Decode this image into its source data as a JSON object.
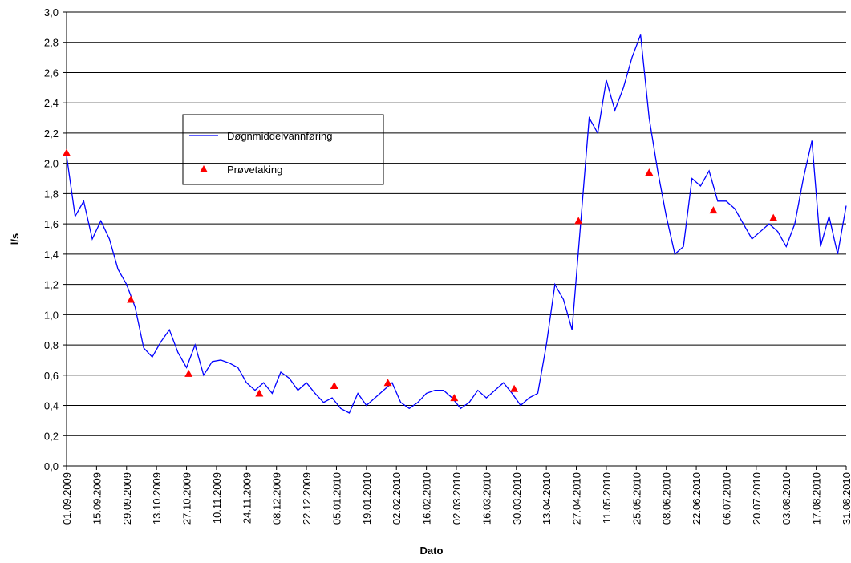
{
  "chart_data": {
    "type": "line",
    "xlabel": "Dato",
    "ylabel": "l/s",
    "xlim": [
      "01.09.2009",
      "31.08.2010"
    ],
    "xticks": [
      "01.09.2009",
      "15.09.2009",
      "29.09.2009",
      "13.10.2009",
      "27.10.2009",
      "10.11.2009",
      "24.11.2009",
      "08.12.2009",
      "22.12.2009",
      "05.01.2010",
      "19.01.2010",
      "02.02.2010",
      "16.02.2010",
      "02.03.2010",
      "16.03.2010",
      "30.03.2010",
      "13.04.2010",
      "27.04.2010",
      "11.05.2010",
      "25.05.2010",
      "08.06.2010",
      "22.06.2010",
      "06.07.2010",
      "20.07.2010",
      "03.08.2010",
      "17.08.2010",
      "31.08.2010"
    ],
    "ylim": [
      0,
      3
    ],
    "yticks": [
      {
        "value": 0,
        "label": "0,0"
      },
      {
        "value": 0.2,
        "label": "0,2"
      },
      {
        "value": 0.4,
        "label": "0,4"
      },
      {
        "value": 0.6,
        "label": "0,6"
      },
      {
        "value": 0.8,
        "label": "0,8"
      },
      {
        "value": 1,
        "label": "1,0"
      },
      {
        "value": 1.2,
        "label": "1,2"
      },
      {
        "value": 1.4,
        "label": "1,4"
      },
      {
        "value": 1.6,
        "label": "1,6"
      },
      {
        "value": 1.8,
        "label": "1,8"
      },
      {
        "value": 2,
        "label": "2,0"
      },
      {
        "value": 2.2,
        "label": "2,2"
      },
      {
        "value": 2.4,
        "label": "2,4"
      },
      {
        "value": 2.6,
        "label": "2,6"
      },
      {
        "value": 2.8,
        "label": "2,8"
      },
      {
        "value": 3,
        "label": "3,0"
      }
    ],
    "grid": true,
    "series": [
      {
        "name": "Døgnmiddelvannføring",
        "type": "line",
        "color": "#0000ff",
        "x": [
          "01.09.2009",
          "05.09.2009",
          "09.09.2009",
          "13.09.2009",
          "17.09.2009",
          "21.09.2009",
          "25.09.2009",
          "29.09.2009",
          "03.10.2009",
          "07.10.2009",
          "11.10.2009",
          "15.10.2009",
          "19.10.2009",
          "23.10.2009",
          "27.10.2009",
          "31.10.2009",
          "04.11.2009",
          "08.11.2009",
          "12.11.2009",
          "16.11.2009",
          "20.11.2009",
          "24.11.2009",
          "28.11.2009",
          "02.12.2009",
          "06.12.2009",
          "10.12.2009",
          "14.12.2009",
          "18.12.2009",
          "22.12.2009",
          "26.12.2009",
          "30.12.2009",
          "03.01.2010",
          "07.01.2010",
          "11.01.2010",
          "15.01.2010",
          "19.01.2010",
          "23.01.2010",
          "27.01.2010",
          "31.01.2010",
          "04.02.2010",
          "08.02.2010",
          "12.02.2010",
          "16.02.2010",
          "20.02.2010",
          "24.02.2010",
          "28.02.2010",
          "04.03.2010",
          "08.03.2010",
          "12.03.2010",
          "16.03.2010",
          "20.03.2010",
          "24.03.2010",
          "28.03.2010",
          "01.04.2010",
          "05.04.2010",
          "09.04.2010",
          "13.04.2010",
          "17.04.2010",
          "21.04.2010",
          "25.04.2010",
          "29.04.2010",
          "03.05.2010",
          "07.05.2010",
          "11.05.2010",
          "15.05.2010",
          "19.05.2010",
          "23.05.2010",
          "27.05.2010",
          "31.05.2010",
          "04.06.2010",
          "08.06.2010",
          "12.06.2010",
          "16.06.2010",
          "20.06.2010",
          "24.06.2010",
          "28.06.2010",
          "02.07.2010",
          "06.07.2010",
          "10.07.2010",
          "14.07.2010",
          "18.07.2010",
          "22.07.2010",
          "26.07.2010",
          "30.07.2010",
          "03.08.2010",
          "07.08.2010",
          "11.08.2010",
          "15.08.2010",
          "19.08.2010",
          "23.08.2010",
          "27.08.2010",
          "31.08.2010"
        ],
        "values": [
          2.05,
          1.65,
          1.75,
          1.5,
          1.62,
          1.5,
          1.3,
          1.2,
          1.05,
          0.78,
          0.72,
          0.82,
          0.9,
          0.75,
          0.65,
          0.8,
          0.6,
          0.69,
          0.7,
          0.68,
          0.65,
          0.55,
          0.5,
          0.55,
          0.48,
          0.62,
          0.58,
          0.5,
          0.55,
          0.48,
          0.42,
          0.45,
          0.38,
          0.35,
          0.48,
          0.4,
          0.45,
          0.5,
          0.55,
          0.42,
          0.38,
          0.42,
          0.48,
          0.5,
          0.5,
          0.45,
          0.38,
          0.42,
          0.5,
          0.45,
          0.5,
          0.55,
          0.48,
          0.4,
          0.45,
          0.48,
          0.8,
          1.2,
          1.1,
          0.9,
          1.6,
          2.3,
          2.2,
          2.55,
          2.35,
          2.5,
          2.7,
          2.85,
          2.3,
          1.95,
          1.65,
          1.4,
          1.45,
          1.9,
          1.85,
          1.95,
          1.75,
          1.75,
          1.7,
          1.6,
          1.5,
          1.55,
          1.6,
          1.55,
          1.45,
          1.6,
          1.9,
          2.15,
          1.45,
          1.65,
          1.4,
          1.72
        ]
      },
      {
        "name": "Prøvetaking",
        "type": "scatter",
        "color": "#ff0000",
        "x": [
          "01.09.2009",
          "01.10.2009",
          "28.10.2009",
          "30.11.2009",
          "04.01.2010",
          "29.01.2010",
          "01.03.2010",
          "29.03.2010",
          "28.04.2010",
          "31.05.2010",
          "30.06.2010",
          "28.07.2010"
        ],
        "values": [
          2.07,
          1.1,
          0.61,
          0.48,
          0.53,
          0.55,
          0.45,
          0.51,
          1.62,
          1.94,
          1.69,
          1.64
        ]
      }
    ]
  }
}
